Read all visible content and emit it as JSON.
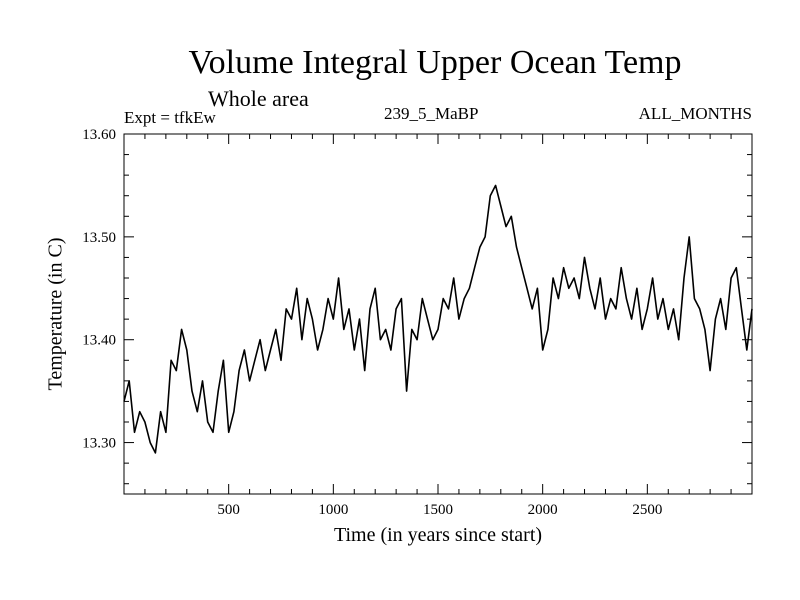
{
  "header": {
    "title": "Volume Integral Upper Ocean Temp",
    "subtitle": "Whole area",
    "expt": "Expt = tfkEw",
    "run": "239_5_MaBP",
    "months": "ALL_MONTHS"
  },
  "chart_data": {
    "type": "line",
    "title": "Volume Integral Upper Ocean Temp",
    "subtitle": "Whole area",
    "xlabel": "Time (in years since start)",
    "ylabel": "Temperature (in C)",
    "xlim": [
      0,
      3000
    ],
    "ylim": [
      13.25,
      13.6
    ],
    "xticks": [
      500,
      1000,
      1500,
      2000,
      2500
    ],
    "xtick_labels": [
      "500",
      "1000",
      "1500",
      "2000",
      "2500"
    ],
    "yticks": [
      13.3,
      13.4,
      13.5,
      13.6
    ],
    "ytick_labels": [
      "13.30",
      "13.40",
      "13.50",
      "13.60"
    ],
    "grid": false,
    "series": [
      {
        "x": [
          0,
          25,
          50,
          75,
          100,
          125,
          150,
          175,
          200,
          225,
          250,
          275,
          300,
          325,
          350,
          375,
          400,
          425,
          450,
          475,
          500,
          525,
          550,
          575,
          600,
          625,
          650,
          675,
          700,
          725,
          750,
          775,
          800,
          825,
          850,
          875,
          900,
          925,
          950,
          975,
          1000,
          1025,
          1050,
          1075,
          1100,
          1125,
          1150,
          1175,
          1200,
          1225,
          1250,
          1275,
          1300,
          1325,
          1350,
          1375,
          1400,
          1425,
          1450,
          1475,
          1500,
          1525,
          1550,
          1575,
          1600,
          1625,
          1650,
          1675,
          1700,
          1725,
          1750,
          1775,
          1800,
          1825,
          1850,
          1875,
          1900,
          1925,
          1950,
          1975,
          2000,
          2025,
          2050,
          2075,
          2100,
          2125,
          2150,
          2175,
          2200,
          2225,
          2250,
          2275,
          2300,
          2325,
          2350,
          2375,
          2400,
          2425,
          2450,
          2475,
          2500,
          2525,
          2550,
          2575,
          2600,
          2625,
          2650,
          2675,
          2700,
          2725,
          2750,
          2775,
          2800,
          2825,
          2850,
          2875,
          2900,
          2925,
          2950,
          2975,
          3000
        ],
        "y": [
          13.34,
          13.36,
          13.31,
          13.33,
          13.32,
          13.3,
          13.29,
          13.33,
          13.31,
          13.38,
          13.37,
          13.41,
          13.39,
          13.35,
          13.33,
          13.36,
          13.32,
          13.31,
          13.35,
          13.38,
          13.31,
          13.33,
          13.37,
          13.39,
          13.36,
          13.38,
          13.4,
          13.37,
          13.39,
          13.41,
          13.38,
          13.43,
          13.42,
          13.45,
          13.4,
          13.44,
          13.42,
          13.39,
          13.41,
          13.44,
          13.42,
          13.46,
          13.41,
          13.43,
          13.39,
          13.42,
          13.37,
          13.43,
          13.45,
          13.4,
          13.41,
          13.39,
          13.43,
          13.44,
          13.35,
          13.41,
          13.4,
          13.44,
          13.42,
          13.4,
          13.41,
          13.44,
          13.43,
          13.46,
          13.42,
          13.44,
          13.45,
          13.47,
          13.49,
          13.5,
          13.54,
          13.55,
          13.53,
          13.51,
          13.52,
          13.49,
          13.47,
          13.45,
          13.43,
          13.45,
          13.39,
          13.41,
          13.46,
          13.44,
          13.47,
          13.45,
          13.46,
          13.44,
          13.48,
          13.45,
          13.43,
          13.46,
          13.42,
          13.44,
          13.43,
          13.47,
          13.44,
          13.42,
          13.45,
          13.41,
          13.43,
          13.46,
          13.42,
          13.44,
          13.41,
          13.43,
          13.4,
          13.46,
          13.5,
          13.44,
          13.43,
          13.41,
          13.37,
          13.42,
          13.44,
          13.41,
          13.46,
          13.47,
          13.43,
          13.39,
          13.43
        ]
      }
    ]
  }
}
